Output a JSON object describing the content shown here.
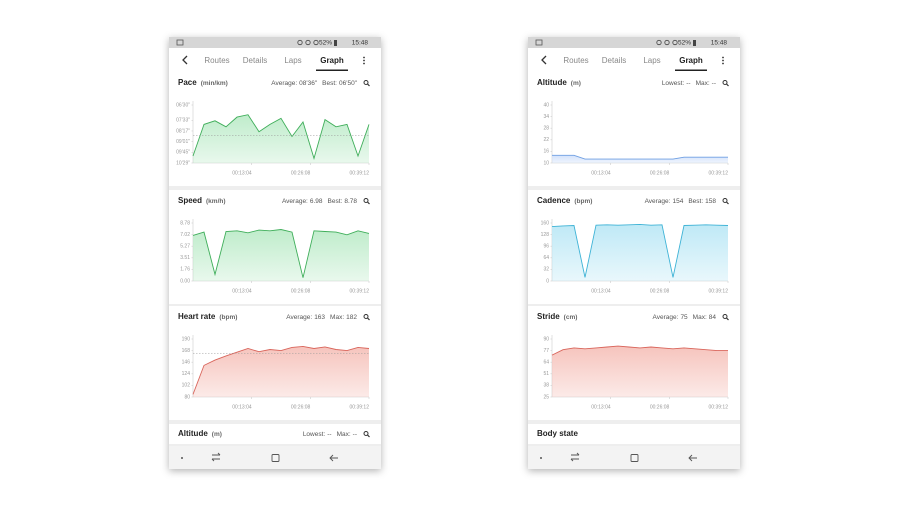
{
  "phones": [
    {
      "status": {
        "battery": "52%",
        "time": "15:48"
      },
      "tabs": [
        "Routes",
        "Details",
        "Laps",
        "Graph"
      ],
      "active_tab": 3,
      "cards": [
        {
          "type": "area",
          "title": "Pace",
          "unit": "(min/km)",
          "stats": [
            {
              "label": "Average:",
              "value": {
                "value": 516,
                "label": "08'36\""
              }
            },
            {
              "label": "Best:",
              "value": {
                "value": 410,
                "label": "06'50\""
              }
            }
          ],
          "avg_line": true,
          "color": "#3fae5a",
          "fill": "#bfeccb",
          "ylim": [
            629,
            390
          ],
          "yticks": [
            {
              "value": 390,
              "label": "06'30\""
            },
            {
              "value": 453,
              "label": "07'33\""
            },
            {
              "value": 497,
              "label": "08'17\""
            },
            {
              "value": 541,
              "label": "09'01\""
            },
            {
              "value": 585,
              "label": "09'45\""
            },
            {
              "value": 629,
              "label": "10'29\""
            }
          ],
          "xlim": [
            0,
            2352
          ],
          "xticks": [
            {
              "value": 784,
              "label": "00:13:04"
            },
            {
              "value": 1568,
              "label": "00:26:08"
            },
            {
              "value": 2352,
              "label": "00:39:12"
            }
          ],
          "x": [
            0,
            147,
            294,
            441,
            588,
            735,
            882,
            1029,
            1176,
            1323,
            1470,
            1617,
            1764,
            1911,
            2058,
            2205,
            2352
          ],
          "values": [
            600,
            470,
            455,
            480,
            440,
            430,
            500,
            470,
            445,
            520,
            460,
            610,
            450,
            480,
            470,
            600,
            470
          ]
        },
        {
          "type": "area",
          "title": "Speed",
          "unit": "(km/h)",
          "stats": [
            {
              "label": "Average:",
              "value": 6.98
            },
            {
              "label": "Best:",
              "value": 8.78
            }
          ],
          "avg_line": false,
          "color": "#3fae5a",
          "fill": "#bfeccb",
          "ylim": [
            0,
            8.78
          ],
          "yticks": [
            8.78,
            7.02,
            5.27,
            3.51,
            1.76,
            {
              "value": 0,
              "label": "0.00"
            }
          ],
          "xlim": [
            0,
            2352
          ],
          "xticks": [
            {
              "value": 784,
              "label": "00:13:04"
            },
            {
              "value": 1568,
              "label": "00:26:08"
            },
            {
              "value": 2352,
              "label": "00:39:12"
            }
          ],
          "x": [
            0,
            147,
            294,
            441,
            588,
            735,
            882,
            1029,
            1176,
            1323,
            1470,
            1617,
            1764,
            1911,
            2058,
            2205,
            2352
          ],
          "values": [
            6.9,
            7.4,
            1.0,
            7.5,
            7.6,
            7.3,
            7.7,
            7.6,
            7.8,
            7.4,
            0.5,
            7.6,
            7.5,
            7.4,
            7.0,
            7.6,
            7.2
          ]
        },
        {
          "type": "area",
          "title": "Heart rate",
          "unit": "(bpm)",
          "stats": [
            {
              "label": "Average:",
              "value": 163
            },
            {
              "label": "Max:",
              "value": 182
            }
          ],
          "avg_line": true,
          "color": "#d9655b",
          "fill": "#f6c4bd",
          "ylim": [
            80,
            190
          ],
          "yticks": [
            190,
            168,
            146,
            124,
            102,
            80
          ],
          "xlim": [
            0,
            2352
          ],
          "xticks": [
            {
              "value": 784,
              "label": "00:13:04"
            },
            {
              "value": 1568,
              "label": "00:26:08"
            },
            {
              "value": 2352,
              "label": "00:39:12"
            }
          ],
          "x": [
            0,
            147,
            294,
            441,
            588,
            735,
            882,
            1029,
            1176,
            1323,
            1470,
            1617,
            1764,
            1911,
            2058,
            2205,
            2352
          ],
          "values": [
            85,
            140,
            150,
            158,
            165,
            172,
            166,
            170,
            168,
            174,
            176,
            172,
            175,
            170,
            168,
            174,
            172
          ]
        }
      ],
      "footer_card": {
        "title": "Altitude",
        "unit": "(m)",
        "stats": [
          {
            "label": "Lowest:",
            "value": "--"
          },
          {
            "label": "Max:",
            "value": "--"
          }
        ]
      }
    },
    {
      "status": {
        "battery": "52%",
        "time": "15:48"
      },
      "tabs": [
        "Routes",
        "Details",
        "Laps",
        "Graph"
      ],
      "active_tab": 3,
      "cards": [
        {
          "type": "area",
          "title": "Altitude",
          "unit": "(m)",
          "stats": [
            {
              "label": "Lowest:",
              "value": "--"
            },
            {
              "label": "Max:",
              "value": "--"
            }
          ],
          "avg_line": false,
          "color": "#6f9fe2",
          "fill": "#d3e2fb",
          "ylim": [
            10,
            40
          ],
          "yticks": [
            40,
            34,
            28,
            22,
            16,
            10
          ],
          "xlim": [
            0,
            2352
          ],
          "xticks": [
            {
              "value": 784,
              "label": "00:13:04"
            },
            {
              "value": 1568,
              "label": "00:26:08"
            },
            {
              "value": 2352,
              "label": "00:39:12"
            }
          ],
          "x": [
            0,
            147,
            294,
            441,
            588,
            735,
            882,
            1029,
            1176,
            1323,
            1470,
            1617,
            1764,
            1911,
            2058,
            2205,
            2352
          ],
          "values": [
            14,
            14,
            14,
            12,
            12,
            12,
            12,
            12,
            12,
            12,
            12,
            12,
            13,
            13,
            13,
            13,
            13
          ]
        },
        {
          "type": "area",
          "title": "Cadence",
          "unit": "(bpm)",
          "stats": [
            {
              "label": "Average:",
              "value": 154
            },
            {
              "label": "Best:",
              "value": 158
            }
          ],
          "avg_line": false,
          "color": "#3fb3d6",
          "fill": "#bfe9f6",
          "ylim": [
            0,
            160
          ],
          "yticks": [
            160,
            128,
            96,
            64,
            32,
            0
          ],
          "xlim": [
            0,
            2352
          ],
          "xticks": [
            {
              "value": 784,
              "label": "00:13:04"
            },
            {
              "value": 1568,
              "label": "00:26:08"
            },
            {
              "value": 2352,
              "label": "00:39:12"
            }
          ],
          "x": [
            0,
            147,
            294,
            441,
            588,
            735,
            882,
            1029,
            1176,
            1323,
            1470,
            1617,
            1764,
            1911,
            2058,
            2205,
            2352
          ],
          "values": [
            150,
            152,
            153,
            10,
            154,
            155,
            154,
            155,
            156,
            154,
            155,
            10,
            153,
            154,
            155,
            154,
            153
          ]
        },
        {
          "type": "area",
          "title": "Stride",
          "unit": "(cm)",
          "stats": [
            {
              "label": "Average:",
              "value": 75
            },
            {
              "label": "Max:",
              "value": 84
            }
          ],
          "avg_line": false,
          "color": "#d9655b",
          "fill": "#f6c4bd",
          "ylim": [
            25,
            90
          ],
          "yticks": [
            90,
            77,
            64,
            51,
            38,
            25
          ],
          "xlim": [
            0,
            2352
          ],
          "xticks": [
            {
              "value": 784,
              "label": "00:13:04"
            },
            {
              "value": 1568,
              "label": "00:26:08"
            },
            {
              "value": 2352,
              "label": "00:39:12"
            }
          ],
          "x": [
            0,
            147,
            294,
            441,
            588,
            735,
            882,
            1029,
            1176,
            1323,
            1470,
            1617,
            1764,
            1911,
            2058,
            2205,
            2352
          ],
          "values": [
            72,
            78,
            80,
            79,
            80,
            81,
            82,
            81,
            80,
            81,
            80,
            79,
            80,
            79,
            78,
            77,
            77
          ]
        }
      ],
      "footer_card": {
        "title": "Body state"
      }
    }
  ]
}
